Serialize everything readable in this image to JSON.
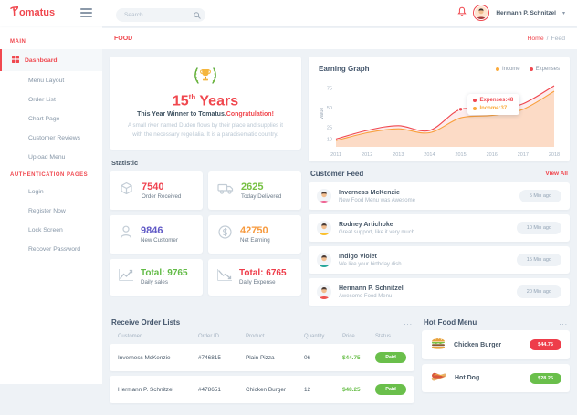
{
  "brand": {
    "name": "Tomatus",
    "display_rest": "omatus",
    "accent": "#f0484f"
  },
  "topbar": {
    "search_placeholder": "Search...",
    "user_name": "Hermann P. Schnitzel"
  },
  "sidebar": {
    "sections": [
      {
        "label": "MAIN",
        "items": [
          {
            "label": "Dashboard",
            "active": true
          },
          {
            "label": "Menu Layout",
            "active": false
          },
          {
            "label": "Order List",
            "active": false
          },
          {
            "label": "Chart Page",
            "active": false
          },
          {
            "label": "Customer Reviews",
            "active": false
          },
          {
            "label": "Upload Menu",
            "active": false
          }
        ]
      },
      {
        "label": "AUTHENTICATION PAGES",
        "items": [
          {
            "label": "Login",
            "active": false
          },
          {
            "label": "Register Now",
            "active": false
          },
          {
            "label": "Lock Screen",
            "active": false
          },
          {
            "label": "Recover Password",
            "active": false
          }
        ]
      }
    ]
  },
  "breadcrumb": {
    "section": "FOOD",
    "home": "Home",
    "separator": "/",
    "current": "Feed"
  },
  "celebration": {
    "years": "15",
    "suffix": "th",
    "title_rest": " Years",
    "winner_dark": "This Year Winner to Tomatus.",
    "winner_red": "Congratulation!",
    "body": "A small river named Duden flows by their place and supplies it with the necessary regelialia. It is a paradisematic country."
  },
  "statistic": {
    "title": "Statistic",
    "cards": [
      {
        "value": "7540",
        "label": "Order Received",
        "color": "#ef4350",
        "icon": "box-icon"
      },
      {
        "value": "2625",
        "label": "Today Delivered",
        "color": "#77c043",
        "icon": "truck-icon"
      },
      {
        "value": "9846",
        "label": "New Customer",
        "color": "#6059c6",
        "icon": "customer-icon"
      },
      {
        "value": "42750",
        "label": "Net Earning",
        "color": "#f79a3e",
        "icon": "earning-icon"
      }
    ],
    "totals": [
      {
        "value": "Total: 9765",
        "label": "Daily sales",
        "color": "#62bb46",
        "icon": "trend-up-icon"
      },
      {
        "value": "Total: 6765",
        "label": "Daily Expense",
        "color": "#ee3d4a",
        "icon": "trend-down-icon"
      }
    ]
  },
  "earning_graph": {
    "title": "Earning Graph",
    "legend": [
      {
        "label": "Income",
        "color": "#fbab3c"
      },
      {
        "label": "Expenses",
        "color": "#f0484f"
      }
    ]
  },
  "chart_data": {
    "type": "area",
    "title": "Earning Graph",
    "x": [
      2011,
      2012,
      2013,
      2014,
      2015,
      2016,
      2017,
      2018
    ],
    "series": [
      {
        "name": "Income",
        "color": "#fbab3c",
        "values": [
          8,
          18,
          23,
          18,
          37,
          40,
          48,
          71
        ]
      },
      {
        "name": "Expenses",
        "color": "#f0484f",
        "values": [
          10,
          21,
          27,
          21,
          48,
          45,
          55,
          78
        ]
      }
    ],
    "xlabel": "",
    "ylabel": "Value",
    "yticks": [
      10,
      25,
      50,
      75
    ],
    "ylim": [
      0,
      85
    ],
    "grid": false,
    "legend_position": "top-right",
    "tooltip": {
      "x": 2015,
      "entries": [
        {
          "name": "Expenses",
          "value": 48,
          "color": "#f0484f"
        },
        {
          "name": "Income",
          "value": 37,
          "color": "#fbab3c"
        }
      ]
    }
  },
  "customer_feed": {
    "title": "Customer Feed",
    "view_all": "View All",
    "items": [
      {
        "name": "Inverness McKenzie",
        "message": "New Food Menu was Awesome",
        "time": "5 Min ago",
        "avatar_color": "#f06292"
      },
      {
        "name": "Rodney Artichoke",
        "message": "Great support, like it very much",
        "time": "10 Min ago",
        "avatar_color": "#fbc02d"
      },
      {
        "name": "Indigo Violet",
        "message": "We like your birthday dish",
        "time": "15 Min ago",
        "avatar_color": "#26a69a"
      },
      {
        "name": "Hermann P. Schnitzel",
        "message": "Awesome Food Menu",
        "time": "20 Min ago",
        "avatar_color": "#ef5350"
      }
    ]
  },
  "order_table": {
    "title": "Receive Order Lists",
    "menu_icon": "...",
    "columns": [
      "Customer",
      "Order ID",
      "Product",
      "Quantity",
      "Price",
      "Status"
    ],
    "rows": [
      {
        "customer": "Inverness McKenzie",
        "order_id": "#746815",
        "product": "Plain Pizza",
        "quantity": "06",
        "price": "$44.75",
        "status": "Paid"
      },
      {
        "customer": "Hermann P. Schnitzel",
        "order_id": "#478651",
        "product": "Chicken Burger",
        "quantity": "12",
        "price": "$48.25",
        "status": "Paid"
      }
    ],
    "status_color": "#6abf4b",
    "price_color": "#6abf4b"
  },
  "hot_food": {
    "title": "Hot Food Menu",
    "menu_icon": "...",
    "items": [
      {
        "name": "Chicken Burger",
        "price": "$44.75",
        "price_color": "#ee3d4a",
        "icon": "burger-icon"
      },
      {
        "name": "Hot Dog",
        "price": "$28.25",
        "price_color": "#6abf4b",
        "icon": "hotdog-icon"
      }
    ]
  }
}
